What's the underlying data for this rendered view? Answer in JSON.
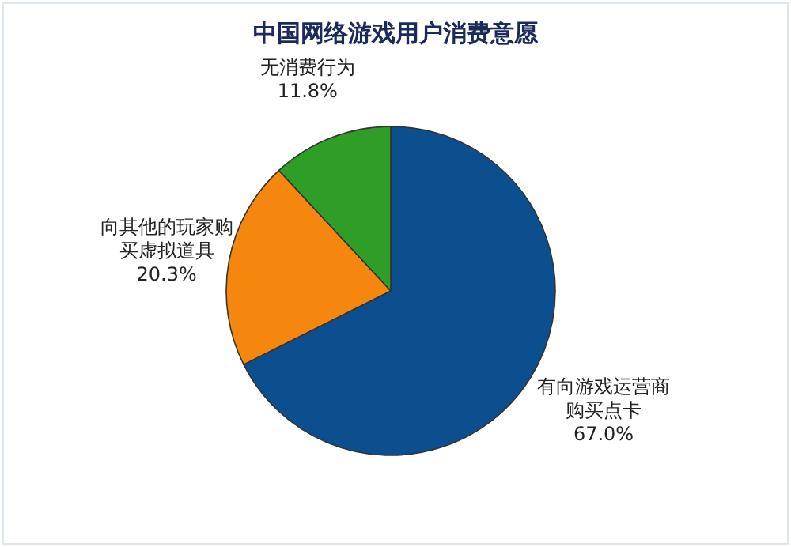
{
  "chart_data": {
    "type": "pie",
    "title": "中国网络游戏用户消费意愿",
    "categories": [
      "有向游戏运营商购买点卡",
      "向其他的玩家购买虚拟道具",
      "无消费行为"
    ],
    "values": [
      67.0,
      20.3,
      11.8
    ],
    "value_labels": [
      "67.0%",
      "20.3%",
      "11.8%"
    ],
    "colors": [
      "#0b4f8f",
      "#f5870f",
      "#2f9e26"
    ]
  }
}
